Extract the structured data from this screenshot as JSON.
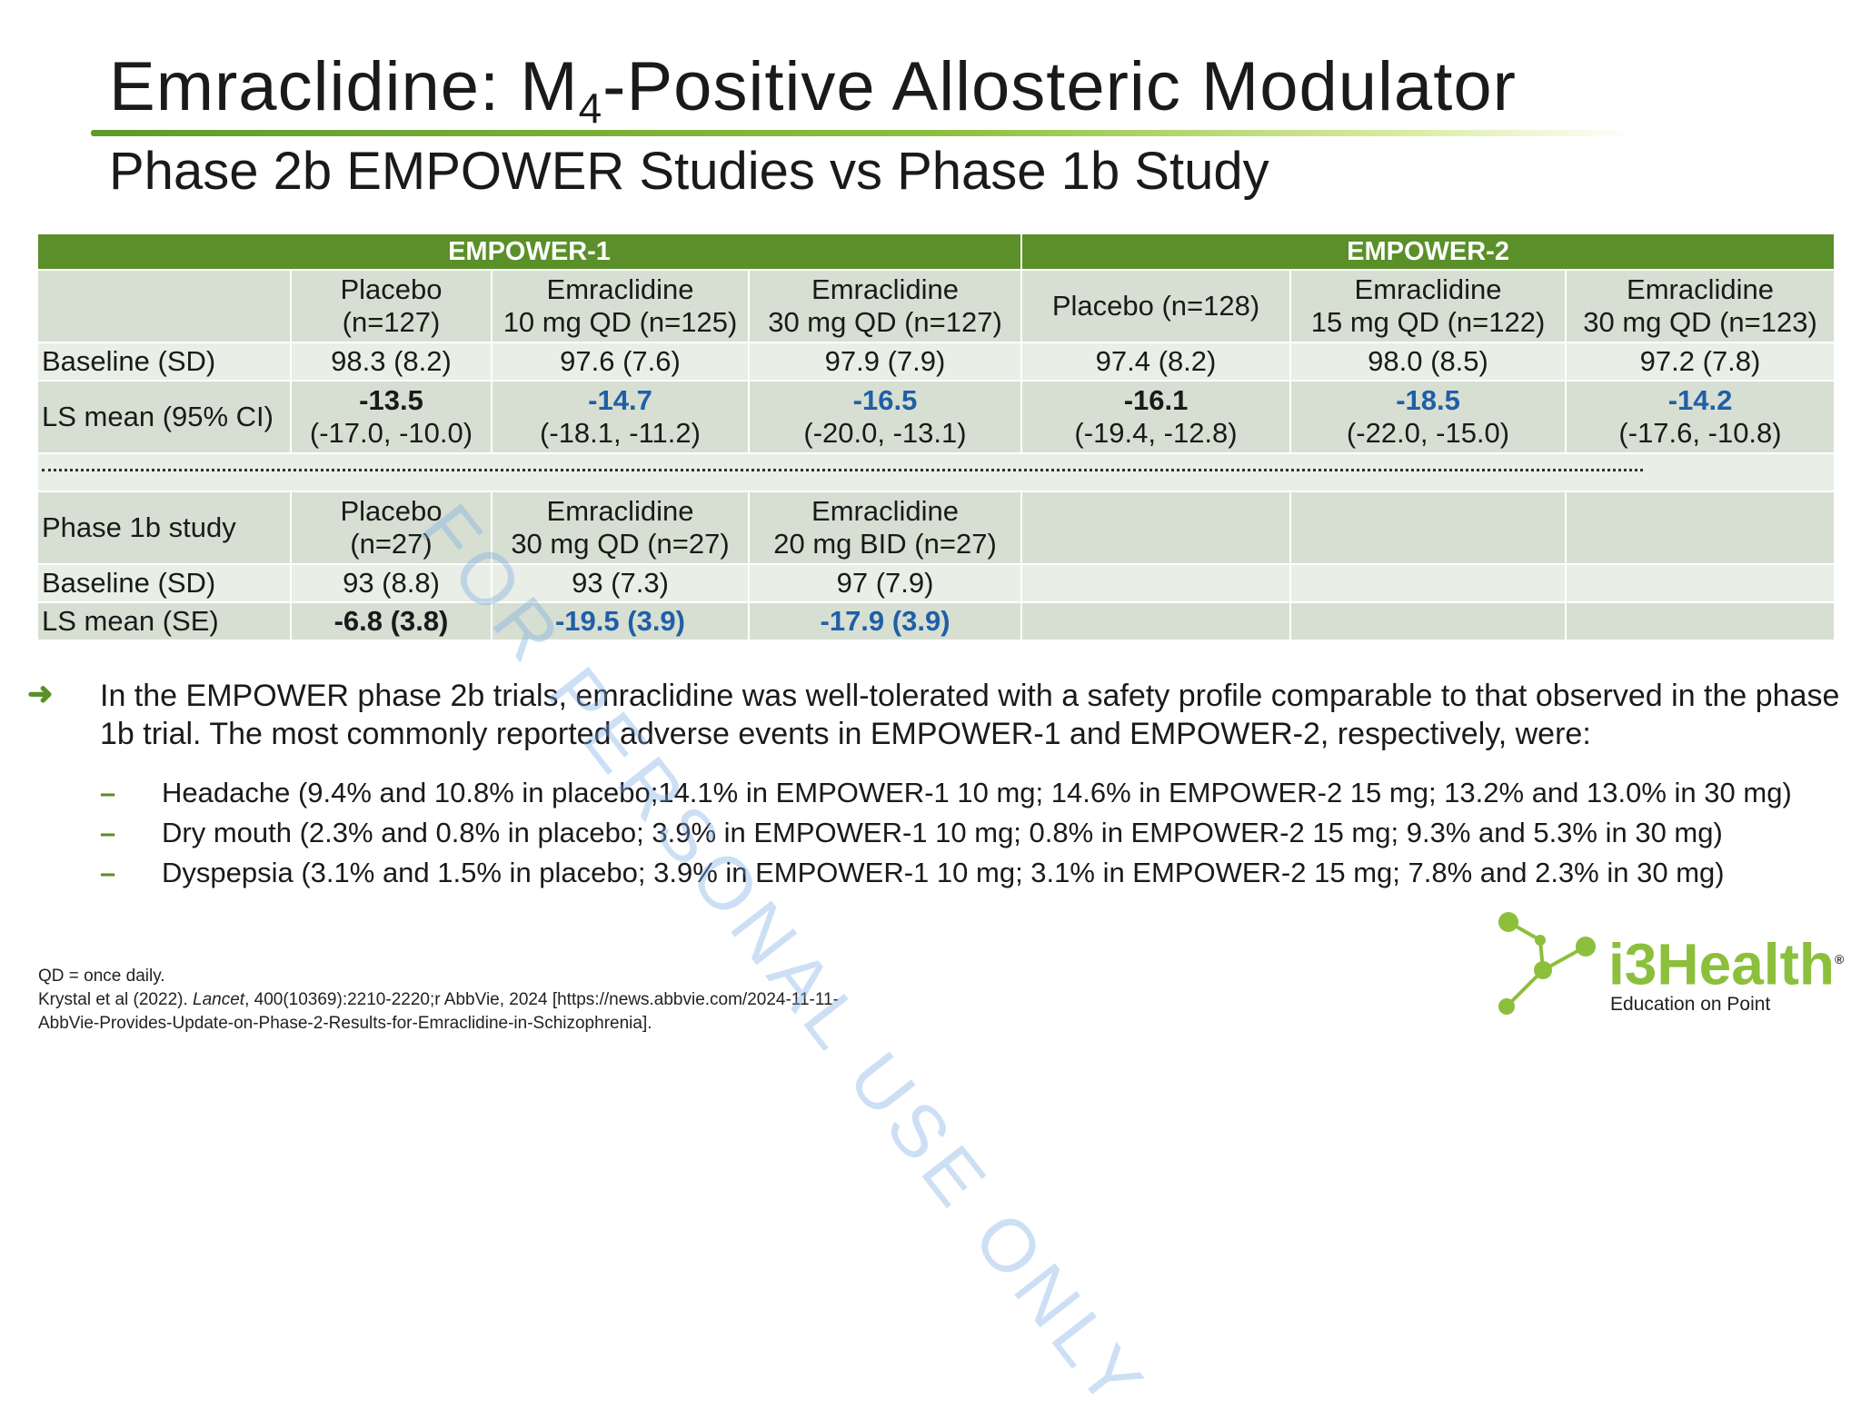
{
  "title": {
    "main": "Emraclidine: M",
    "sub": "4",
    "rest": "-Positive Allosteric Modulator"
  },
  "subtitle": "Phase 2b EMPOWER Studies vs Phase 1b Study",
  "watermark": "FOR PERSONAL USE ONLY",
  "table": {
    "group1": "EMPOWER-1",
    "group2": "EMPOWER-2",
    "headers": [
      [
        "Placebo",
        "(n=127)"
      ],
      [
        "Emraclidine",
        "10 mg QD (n=125)"
      ],
      [
        "Emraclidine",
        "30 mg QD (n=127)"
      ],
      [
        "Placebo (n=128)",
        ""
      ],
      [
        "Emraclidine",
        "15 mg QD (n=122)"
      ],
      [
        "Emraclidine",
        "30 mg QD (n=123)"
      ]
    ],
    "baseline_label": "Baseline (SD)",
    "baseline": [
      "98.3 (8.2)",
      "97.6 (7.6)",
      "97.9 (7.9)",
      "97.4 (8.2)",
      "98.0 (8.5)",
      "97.2 (7.8)"
    ],
    "lsmean_label": "LS mean (95% CI)",
    "lsmean": [
      [
        "-13.5",
        "(-17.0, -10.0)"
      ],
      [
        "-14.7",
        "(-18.1, -11.2)"
      ],
      [
        "-16.5",
        "(-20.0, -13.1)"
      ],
      [
        "-16.1",
        "(-19.4, -12.8)"
      ],
      [
        "-18.5",
        "(-22.0, -15.0)"
      ],
      [
        "-14.2",
        "(-17.6, -10.8)"
      ]
    ],
    "phase1b_label": "Phase 1b study",
    "phase1b_headers": [
      [
        "Placebo",
        "(n=27)"
      ],
      [
        "Emraclidine",
        "30 mg QD (n=27)"
      ],
      [
        "Emraclidine",
        "20 mg BID (n=27)"
      ]
    ],
    "p1b_baseline_label": "Baseline (SD)",
    "p1b_baseline": [
      "93 (8.8)",
      "93 (7.3)",
      "97 (7.9)"
    ],
    "p1b_lsmean_label": "LS mean (SE)",
    "p1b_lsmean": [
      "-6.8 (3.8)",
      "-19.5 (3.9)",
      "-17.9 (3.9)"
    ]
  },
  "bullet": "In the EMPOWER phase 2b trials, emraclidine was well-tolerated with a safety profile comparable to that observed in the phase 1b trial. The most commonly reported adverse events in EMPOWER-1 and EMPOWER-2, respectively, were:",
  "sub_bullets": [
    "Headache (9.4% and 10.8% in placebo;14.1% in EMPOWER-1 10 mg; 14.6% in EMPOWER-2 15 mg; 13.2% and 13.0% in 30 mg)",
    "Dry mouth (2.3% and 0.8% in placebo; 3.9% in EMPOWER-1 10 mg; 0.8% in EMPOWER-2 15 mg; 9.3% and 5.3% in 30 mg)",
    "Dyspepsia (3.1% and 1.5% in placebo; 3.9% in EMPOWER-1 10 mg; 3.1% in EMPOWER-2 15 mg; 7.8% and 2.3% in 30 mg)"
  ],
  "footnote": {
    "line1": "QD = once daily.",
    "line2a": "Krystal et al (2022). ",
    "line2b": "Lancet",
    "line2c": ", 400(10369):2210-2220;r AbbVie, 2024 [https://news.abbvie.com/2024-11-11-",
    "line3": "AbbVie-Provides-Update-on-Phase-2-Results-for-Emraclidine-in-Schizophrenia]."
  },
  "logo": {
    "name": "i3Health",
    "reg": "®",
    "tagline": "Education on Point"
  },
  "colors": {
    "brand_green": "#5a8f29",
    "highlight_blue": "#1f5fa8",
    "row_shade": "#d7dfd2"
  }
}
